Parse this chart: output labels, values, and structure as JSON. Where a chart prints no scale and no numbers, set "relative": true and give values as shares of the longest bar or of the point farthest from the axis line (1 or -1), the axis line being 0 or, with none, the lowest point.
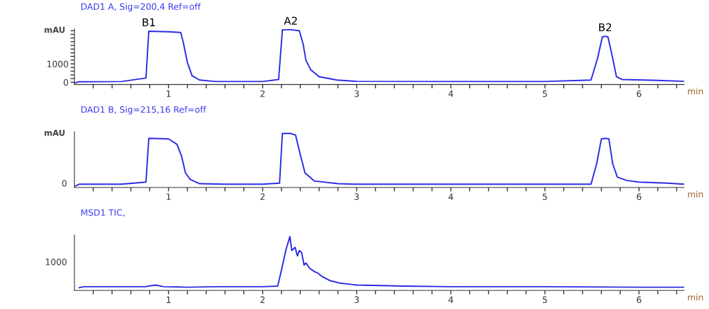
{
  "chart_data": [
    {
      "type": "line",
      "title": "DAD1 A, Sig=200,4 Ref=off",
      "ylabel": "mAU",
      "xlabel": "min",
      "x": [
        0.0,
        0.05,
        0.5,
        0.76,
        0.79,
        1.0,
        1.13,
        1.16,
        1.2,
        1.25,
        1.33,
        1.5,
        2.0,
        2.17,
        2.21,
        2.3,
        2.39,
        2.43,
        2.46,
        2.51,
        2.6,
        2.79,
        3.0,
        4.0,
        5.0,
        5.49,
        5.56,
        5.61,
        5.64,
        5.67,
        5.72,
        5.76,
        5.82,
        6.2,
        6.48
      ],
      "series": [
        {
          "color": "#2a2ae6",
          "values": [
            -40,
            30,
            40,
            230,
            2770,
            2740,
            2700,
            2080,
            1080,
            350,
            120,
            40,
            40,
            150,
            2850,
            2850,
            2800,
            2080,
            1190,
            690,
            300,
            120,
            50,
            40,
            40,
            120,
            1310,
            2460,
            2500,
            2460,
            1310,
            300,
            150,
            100,
            50
          ]
        }
      ],
      "xlim": [
        0,
        6.48
      ],
      "ylim": [
        -120,
        2900
      ],
      "xticks": [
        {
          "value": 0.2,
          "label": null
        },
        {
          "value": 0.4,
          "label": null
        },
        {
          "value": 0.6,
          "label": null
        },
        {
          "value": 0.8,
          "label": null
        },
        1,
        {
          "value": 1.2,
          "label": null
        },
        {
          "value": 1.4,
          "label": null
        },
        {
          "value": 1.6,
          "label": null
        },
        {
          "value": 1.8,
          "label": null
        },
        2,
        {
          "value": 2.2,
          "label": null
        },
        {
          "value": 2.4,
          "label": null
        },
        {
          "value": 2.6,
          "label": null
        },
        {
          "value": 2.8,
          "label": null
        },
        3,
        {
          "value": 3.2,
          "label": null
        },
        {
          "value": 3.4,
          "label": null
        },
        {
          "value": 3.6,
          "label": null
        },
        {
          "value": 3.8,
          "label": null
        },
        4,
        {
          "value": 4.2,
          "label": null
        },
        {
          "value": 4.4,
          "label": null
        },
        {
          "value": 4.6,
          "label": null
        },
        {
          "value": 4.8,
          "label": null
        },
        5,
        {
          "value": 5.2,
          "label": null
        },
        {
          "value": 5.4,
          "label": null
        },
        {
          "value": 5.6,
          "label": null
        },
        {
          "value": 5.8,
          "label": null
        },
        6,
        {
          "value": 6.2,
          "label": null
        },
        {
          "value": 6.4,
          "label": null
        }
      ],
      "yticks": [
        0,
        {
          "value": 200,
          "label": null
        },
        {
          "value": 400,
          "label": null
        },
        {
          "value": 600,
          "label": null
        },
        {
          "value": 800,
          "label": null
        },
        1000,
        {
          "value": 1200,
          "label": null
        },
        {
          "value": 1400,
          "label": null
        },
        {
          "value": 1600,
          "label": null
        },
        {
          "value": 1800,
          "label": null
        },
        {
          "value": 2000,
          "label": null
        },
        {
          "value": 2200,
          "label": null
        },
        {
          "value": 2400,
          "label": null
        },
        {
          "value": 2600,
          "label": null
        },
        {
          "value": 2800,
          "label": null
        }
      ],
      "annotations": [
        {
          "text": "B1",
          "x": 0.79,
          "y": 2770
        },
        {
          "text": "A2",
          "x": 2.3,
          "y": 2850
        },
        {
          "text": "B2",
          "x": 5.64,
          "y": 2500
        }
      ],
      "grid": false
    },
    {
      "type": "line",
      "title": "DAD1 B, Sig=215,16 Ref=off",
      "ylabel": "mAU",
      "xlabel": "min",
      "relative": true,
      "x": [
        0.0,
        0.05,
        0.5,
        0.76,
        0.79,
        1.0,
        1.09,
        1.14,
        1.18,
        1.23,
        1.33,
        1.6,
        2.0,
        2.18,
        2.21,
        2.3,
        2.35,
        2.4,
        2.45,
        2.55,
        2.8,
        3.0,
        4.0,
        5.0,
        5.49,
        5.55,
        5.6,
        5.64,
        5.68,
        5.72,
        5.77,
        5.87,
        6.0,
        6.3,
        6.48
      ],
      "series": [
        {
          "color": "#2a2ae6",
          "values": [
            0.02,
            0.06,
            0.06,
            0.1,
            0.91,
            0.9,
            0.8,
            0.57,
            0.27,
            0.15,
            0.07,
            0.06,
            0.06,
            0.08,
            1.0,
            1.0,
            0.97,
            0.61,
            0.27,
            0.12,
            0.07,
            0.06,
            0.06,
            0.06,
            0.06,
            0.44,
            0.9,
            0.91,
            0.9,
            0.44,
            0.19,
            0.13,
            0.1,
            0.08,
            0.06
          ]
        }
      ],
      "xlim": [
        0,
        6.48
      ],
      "xticks": [
        {
          "value": 0.2,
          "label": null
        },
        {
          "value": 0.4,
          "label": null
        },
        {
          "value": 0.6,
          "label": null
        },
        {
          "value": 0.8,
          "label": null
        },
        1,
        {
          "value": 1.2,
          "label": null
        },
        {
          "value": 1.4,
          "label": null
        },
        {
          "value": 1.6,
          "label": null
        },
        {
          "value": 1.8,
          "label": null
        },
        2,
        {
          "value": 2.2,
          "label": null
        },
        {
          "value": 2.4,
          "label": null
        },
        {
          "value": 2.6,
          "label": null
        },
        {
          "value": 2.8,
          "label": null
        },
        3,
        {
          "value": 3.2,
          "label": null
        },
        {
          "value": 3.4,
          "label": null
        },
        {
          "value": 3.6,
          "label": null
        },
        {
          "value": 3.8,
          "label": null
        },
        4,
        {
          "value": 4.2,
          "label": null
        },
        {
          "value": 4.4,
          "label": null
        },
        {
          "value": 4.6,
          "label": null
        },
        {
          "value": 4.8,
          "label": null
        },
        5,
        {
          "value": 5.2,
          "label": null
        },
        {
          "value": 5.4,
          "label": null
        },
        {
          "value": 5.6,
          "label": null
        },
        {
          "value": 5.8,
          "label": null
        },
        6,
        {
          "value": 6.2,
          "label": null
        },
        {
          "value": 6.4,
          "label": null
        }
      ],
      "annotations": [
        "0"
      ],
      "grid": false
    },
    {
      "type": "line",
      "title": "MSD1 TIC,",
      "xlabel": "min",
      "relative": true,
      "x": [
        0.05,
        0.1,
        0.5,
        0.75,
        0.86,
        0.95,
        1.2,
        1.5,
        2.0,
        2.16,
        2.19,
        2.25,
        2.29,
        2.31,
        2.345,
        2.37,
        2.39,
        2.415,
        2.44,
        2.46,
        2.5,
        2.56,
        2.58,
        2.63,
        2.72,
        2.81,
        3.0,
        3.5,
        4.0,
        5.0,
        6.0,
        6.48
      ],
      "series": [
        {
          "color": "#2a2ae6",
          "values": [
            0.05,
            0.07,
            0.07,
            0.07,
            0.1,
            0.07,
            0.06,
            0.07,
            0.07,
            0.08,
            0.3,
            0.77,
            1.0,
            0.74,
            0.8,
            0.64,
            0.74,
            0.7,
            0.47,
            0.51,
            0.41,
            0.34,
            0.33,
            0.26,
            0.18,
            0.14,
            0.1,
            0.08,
            0.07,
            0.07,
            0.06,
            0.06
          ]
        }
      ],
      "xlim": [
        0,
        6.48
      ],
      "xticks": [
        {
          "value": 0.2,
          "label": null
        },
        {
          "value": 0.4,
          "label": null
        },
        {
          "value": 0.6,
          "label": null
        },
        {
          "value": 0.8,
          "label": null
        },
        1,
        {
          "value": 1.2,
          "label": null
        },
        {
          "value": 1.4,
          "label": null
        },
        {
          "value": 1.6,
          "label": null
        },
        {
          "value": 1.8,
          "label": null
        },
        2,
        {
          "value": 2.2,
          "label": null
        },
        {
          "value": 2.4,
          "label": null
        },
        {
          "value": 2.6,
          "label": null
        },
        {
          "value": 2.8,
          "label": null
        },
        3,
        {
          "value": 3.2,
          "label": null
        },
        {
          "value": 3.4,
          "label": null
        },
        {
          "value": 3.6,
          "label": null
        },
        {
          "value": 3.8,
          "label": null
        },
        4,
        {
          "value": 4.2,
          "label": null
        },
        {
          "value": 4.4,
          "label": null
        },
        {
          "value": 4.6,
          "label": null
        },
        {
          "value": 4.8,
          "label": null
        },
        5,
        {
          "value": 5.2,
          "label": null
        },
        {
          "value": 5.4,
          "label": null
        },
        {
          "value": 5.6,
          "label": null
        },
        {
          "value": 5.8,
          "label": null
        },
        6,
        {
          "value": 6.2,
          "label": null
        },
        {
          "value": 6.4,
          "label": null
        }
      ],
      "annotations": [
        "1000"
      ],
      "grid": false
    }
  ]
}
